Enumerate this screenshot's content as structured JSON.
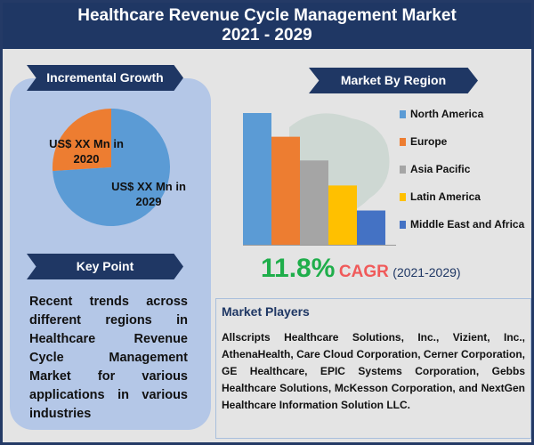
{
  "header": {
    "title": "Healthcare Revenue Cycle Management Market",
    "years": "2021 - 2029"
  },
  "incremental": {
    "title": "Incremental Growth",
    "label_2020": "US$ XX Mn in 2020",
    "label_2029": "US$ XX Mn in 2029"
  },
  "key_point": {
    "title": "Key Point",
    "text": "Recent trends across different regions in Healthcare Revenue Cycle Management Market for various applications in various industries"
  },
  "region": {
    "title": "Market By Region"
  },
  "cagr": {
    "value": "11.8%",
    "label": "CAGR",
    "period": "(2021-2029)"
  },
  "players": {
    "title": "Market Players",
    "text": "Allscripts Healthcare Solutions, Inc., Vizient, Inc., AthenaHealth, Care Cloud Corporation, Cerner Corporation, GE Healthcare, EPIC Systems Corporation, Gebbs Healthcare Solutions, McKesson Corporation, and NextGen Healthcare Information Solution LLC."
  },
  "chart_data": [
    {
      "type": "pie",
      "title": "Incremental Growth",
      "categories": [
        "2020",
        "2029"
      ],
      "values": [
        26,
        74
      ],
      "colors": [
        "#ed7d31",
        "#5b9bd5"
      ]
    },
    {
      "type": "bar",
      "title": "Market By Region",
      "categories": [
        "North America",
        "Europe",
        "Asia Pacific",
        "Latin America",
        "Middle East and Africa"
      ],
      "values": [
        100,
        82,
        64,
        45,
        26
      ],
      "colors": [
        "#5b9bd5",
        "#ed7d31",
        "#a5a5a5",
        "#ffc000",
        "#4472c4"
      ],
      "legend": "right",
      "grid": false
    }
  ]
}
